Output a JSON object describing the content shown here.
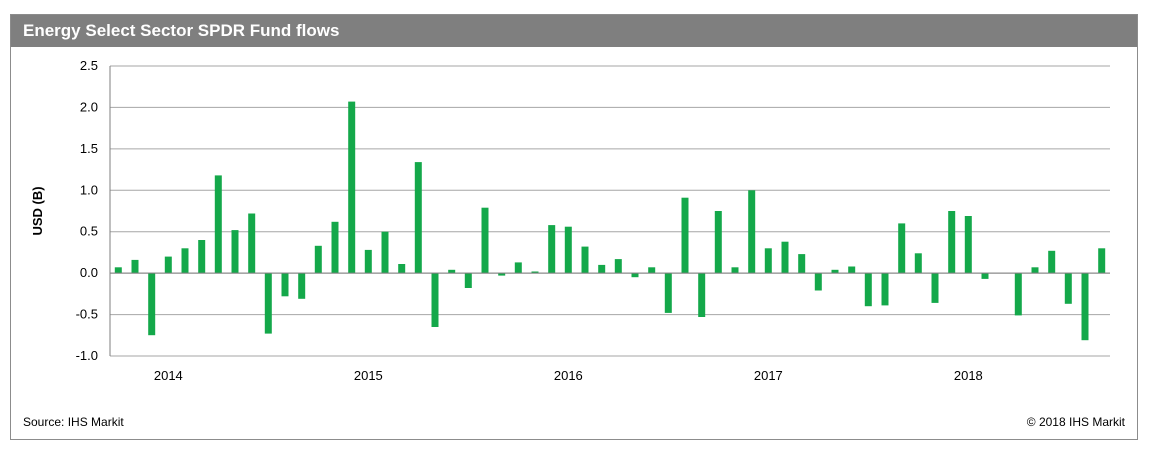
{
  "header": {
    "title": "Energy Select Sector SPDR Fund flows"
  },
  "footer": {
    "source": "Source: IHS Markit",
    "copyright": "© 2018 IHS Markit"
  },
  "colors": {
    "bar": "#14a84a",
    "grid": "#a6a6a6",
    "header_bg": "#7f7f7f"
  },
  "chart_data": {
    "type": "bar",
    "title": "Energy Select Sector SPDR Fund flows",
    "ylabel": "USD (B)",
    "ylim": [
      -1.0,
      2.5
    ],
    "yticks": [
      "-1.0",
      "-0.5",
      "0.0",
      "0.5",
      "1.0",
      "1.5",
      "2.0",
      "2.5"
    ],
    "ytick_values": [
      -1.0,
      -0.5,
      0.0,
      0.5,
      1.0,
      1.5,
      2.0,
      2.5
    ],
    "x_labels": [
      "2014",
      "2015",
      "2016",
      "2017",
      "2018"
    ],
    "x_label_bar_index": [
      3,
      15,
      27,
      39,
      51
    ],
    "grid": true,
    "values": [
      0.07,
      0.16,
      -0.75,
      0.2,
      0.3,
      0.4,
      1.18,
      0.52,
      0.72,
      -0.73,
      -0.28,
      -0.31,
      0.33,
      0.62,
      2.07,
      0.28,
      0.5,
      0.11,
      1.34,
      -0.65,
      0.04,
      -0.18,
      0.79,
      -0.03,
      0.13,
      0.02,
      0.58,
      0.56,
      0.32,
      0.1,
      0.17,
      -0.05,
      0.07,
      -0.48,
      0.91,
      -0.53,
      0.75,
      0.07,
      1.0,
      0.3,
      0.38,
      0.23,
      -0.21,
      0.04,
      0.08,
      -0.4,
      -0.39,
      0.6,
      0.24,
      -0.36,
      0.75,
      0.69,
      -0.07,
      0.0,
      -0.51,
      0.07,
      0.27,
      -0.37,
      -0.81,
      0.3
    ]
  }
}
